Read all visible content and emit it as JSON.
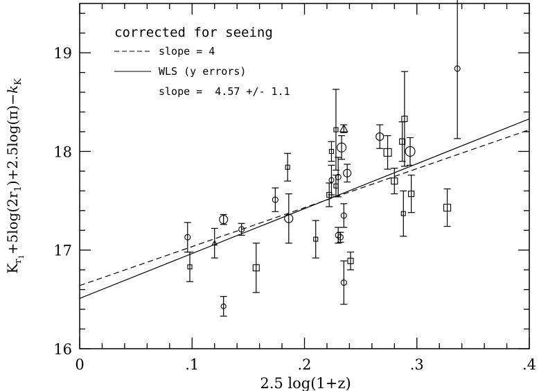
{
  "chart_data": {
    "type": "scatter",
    "title": "",
    "xlabel": "2.5 log(1+z)",
    "ylabel": "K_{r_1}+5log(2r_1)+2.5log(π)−k_K",
    "xlim": [
      0,
      0.4
    ],
    "ylim": [
      16,
      19.5
    ],
    "x_ticks": [
      0,
      0.1,
      0.2,
      0.3,
      0.4
    ],
    "x_tick_labels": [
      "0",
      ".1",
      ".2",
      ".3",
      ".4"
    ],
    "y_ticks": [
      16,
      17,
      18,
      19
    ],
    "y_tick_labels": [
      "16",
      "17",
      "18",
      "19"
    ],
    "legend": {
      "heading": "corrected for seeing",
      "dashed_label": "slope = 4",
      "solid_label": "WLS (y errors)",
      "fit_text": "slope =  4.57 +/- 1.1"
    },
    "lines": [
      {
        "style": "dashed",
        "x": [
          0,
          0.4
        ],
        "y": [
          16.64,
          18.22
        ]
      },
      {
        "style": "solid",
        "x": [
          0,
          0.4
        ],
        "y": [
          16.51,
          18.33
        ]
      }
    ],
    "points": [
      {
        "x": 0.096,
        "y": 17.13,
        "err": 0.15,
        "marker": "circle",
        "size": 8
      },
      {
        "x": 0.098,
        "y": 16.83,
        "err": 0.15,
        "marker": "square",
        "size": 6
      },
      {
        "x": 0.12,
        "y": 17.07,
        "err": 0.15,
        "marker": "triangle",
        "size": 7
      },
      {
        "x": 0.128,
        "y": 16.43,
        "err": 0.1,
        "marker": "circle",
        "size": 7
      },
      {
        "x": 0.128,
        "y": 17.31,
        "err": 0.05,
        "marker": "circle",
        "size": 12
      },
      {
        "x": 0.144,
        "y": 17.21,
        "err": 0.06,
        "marker": "circle",
        "size": 8
      },
      {
        "x": 0.157,
        "y": 16.82,
        "err": 0.25,
        "marker": "square",
        "size": 9
      },
      {
        "x": 0.174,
        "y": 17.51,
        "err": 0.12,
        "marker": "circle",
        "size": 8
      },
      {
        "x": 0.185,
        "y": 17.84,
        "err": 0.14,
        "marker": "square",
        "size": 6
      },
      {
        "x": 0.186,
        "y": 17.32,
        "err": 0.25,
        "marker": "circle",
        "size": 12
      },
      {
        "x": 0.21,
        "y": 17.11,
        "err": 0.19,
        "marker": "square",
        "size": 6
      },
      {
        "x": 0.222,
        "y": 17.56,
        "err": 0.12,
        "marker": "square",
        "size": 7
      },
      {
        "x": 0.224,
        "y": 17.71,
        "err": 0.15,
        "marker": "circle",
        "size": 7
      },
      {
        "x": 0.224,
        "y": 18.0,
        "err": 0.1,
        "marker": "square",
        "size": 6
      },
      {
        "x": 0.228,
        "y": 18.22,
        "err": 0.41,
        "marker": "square",
        "size": 6
      },
      {
        "x": 0.228,
        "y": 17.65,
        "err": 0.11,
        "marker": "square",
        "size": 6
      },
      {
        "x": 0.23,
        "y": 17.74,
        "err": 0.2,
        "marker": "circle",
        "size": 8
      },
      {
        "x": 0.23,
        "y": 17.15,
        "err": 0.08,
        "marker": "circle",
        "size": 8
      },
      {
        "x": 0.232,
        "y": 17.13,
        "err": 0.05,
        "marker": "circle",
        "size": 8
      },
      {
        "x": 0.233,
        "y": 18.04,
        "err": 0.12,
        "marker": "circle",
        "size": 13
      },
      {
        "x": 0.235,
        "y": 18.23,
        "err": 0.04,
        "marker": "triangle",
        "size": 11
      },
      {
        "x": 0.235,
        "y": 17.35,
        "err": 0.12,
        "marker": "circle",
        "size": 8
      },
      {
        "x": 0.235,
        "y": 16.67,
        "err": 0.22,
        "marker": "circle",
        "size": 8
      },
      {
        "x": 0.238,
        "y": 17.78,
        "err": 0.09,
        "marker": "circle",
        "size": 11
      },
      {
        "x": 0.241,
        "y": 16.89,
        "err": 0.09,
        "marker": "square",
        "size": 8
      },
      {
        "x": 0.267,
        "y": 18.15,
        "err": 0.12,
        "marker": "circle",
        "size": 11
      },
      {
        "x": 0.274,
        "y": 17.99,
        "err": 0.17,
        "marker": "square",
        "size": 11
      },
      {
        "x": 0.28,
        "y": 17.7,
        "err": 0.13,
        "marker": "square",
        "size": 9
      },
      {
        "x": 0.287,
        "y": 18.1,
        "err": 0.2,
        "marker": "square",
        "size": 8
      },
      {
        "x": 0.288,
        "y": 17.37,
        "err": 0.23,
        "marker": "square",
        "size": 6
      },
      {
        "x": 0.289,
        "y": 18.33,
        "err": 0.48,
        "marker": "square",
        "size": 8
      },
      {
        "x": 0.294,
        "y": 18.0,
        "err": 0.14,
        "marker": "circle",
        "size": 14
      },
      {
        "x": 0.295,
        "y": 17.57,
        "err": 0.19,
        "marker": "square",
        "size": 8
      },
      {
        "x": 0.327,
        "y": 17.43,
        "err": 0.19,
        "marker": "square",
        "size": 10
      },
      {
        "x": 0.336,
        "y": 18.84,
        "err": 0.71,
        "marker": "circle",
        "size": 8
      }
    ]
  }
}
